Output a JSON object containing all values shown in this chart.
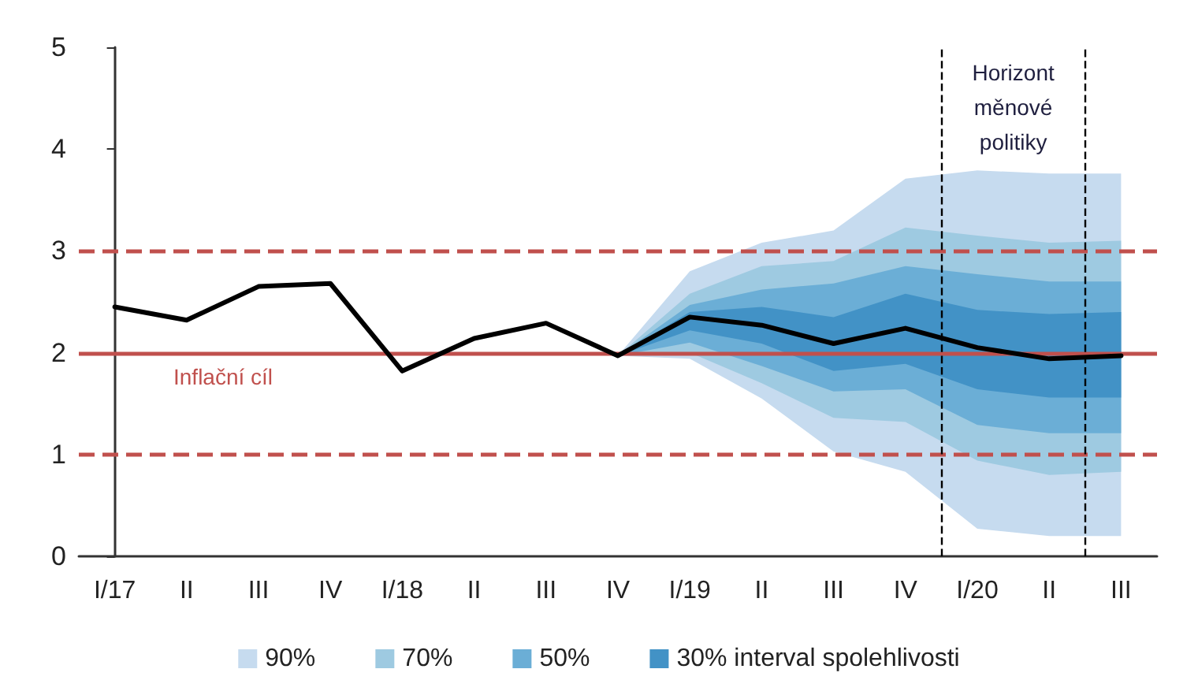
{
  "chart_data": {
    "type": "line",
    "categories": [
      "I/17",
      "II",
      "III",
      "IV",
      "I/18",
      "II",
      "III",
      "IV",
      "I/19",
      "II",
      "III",
      "IV",
      "I/20",
      "II",
      "III"
    ],
    "series": [
      {
        "type": "line",
        "name": "90%",
        "color": "#c6dbef",
        "values": [
          null,
          null,
          null,
          null,
          null,
          null,
          null,
          null,
          null,
          null,
          null,
          null,
          null,
          null,
          null
        ],
        "lower": [
          null,
          null,
          null,
          null,
          null,
          null,
          null,
          1.97,
          1.94,
          1.55,
          1.03,
          0.83,
          0.27,
          0.2,
          0.2
        ],
        "upper": [
          null,
          null,
          null,
          null,
          null,
          null,
          null,
          1.97,
          2.8,
          3.08,
          3.2,
          3.71,
          3.79,
          3.76,
          3.76
        ]
      },
      {
        "type": "line",
        "name": "70%",
        "color": "#9ecae1",
        "values": [
          null,
          null,
          null,
          null,
          null,
          null,
          null,
          null,
          null,
          null,
          null,
          null,
          null,
          null,
          null
        ],
        "lower": [
          null,
          null,
          null,
          null,
          null,
          null,
          null,
          1.97,
          2.0,
          1.7,
          1.36,
          1.32,
          0.94,
          0.8,
          0.83
        ],
        "upper": [
          null,
          null,
          null,
          null,
          null,
          null,
          null,
          1.97,
          2.58,
          2.85,
          2.9,
          3.23,
          3.15,
          3.08,
          3.1
        ]
      },
      {
        "type": "line",
        "name": "50%",
        "color": "#6baed6",
        "values": [
          null,
          null,
          null,
          null,
          null,
          null,
          null,
          null,
          null,
          null,
          null,
          null,
          null,
          null,
          null
        ],
        "lower": [
          null,
          null,
          null,
          null,
          null,
          null,
          null,
          1.97,
          2.1,
          1.87,
          1.62,
          1.64,
          1.29,
          1.21,
          1.21
        ],
        "upper": [
          null,
          null,
          null,
          null,
          null,
          null,
          null,
          1.97,
          2.47,
          2.62,
          2.68,
          2.85,
          2.77,
          2.7,
          2.7
        ]
      },
      {
        "type": "line",
        "name": "30% interval spolehlivosti",
        "color": "#4292c6",
        "values": [
          null,
          null,
          null,
          null,
          null,
          null,
          null,
          null,
          null,
          null,
          null,
          null,
          null,
          null,
          null
        ],
        "lower": [
          null,
          null,
          null,
          null,
          null,
          null,
          null,
          1.97,
          2.22,
          2.09,
          1.82,
          1.89,
          1.64,
          1.56,
          1.56
        ],
        "upper": [
          null,
          null,
          null,
          null,
          null,
          null,
          null,
          1.97,
          2.4,
          2.45,
          2.35,
          2.58,
          2.42,
          2.38,
          2.4
        ]
      },
      {
        "color": "#000000",
        "values": [
          2.45,
          2.32,
          2.65,
          2.68,
          1.82,
          2.14,
          2.29,
          1.97,
          2.35,
          2.27,
          2.09,
          2.24,
          2.05,
          1.94,
          1.97
        ]
      }
    ],
    "ylim": [
      0,
      5
    ],
    "yticks": [
      0,
      1,
      2,
      3,
      4,
      5
    ],
    "ref_lines": [
      {
        "axis": "y",
        "value": 2,
        "label": "Inflační cíl",
        "color": "#c0504d",
        "line_style": "solid"
      },
      {
        "axis": "y",
        "value": 1,
        "color": "#c0504d",
        "line_style": "dashed"
      },
      {
        "axis": "y",
        "value": 3,
        "color": "#c0504d",
        "line_style": "dashed"
      }
    ],
    "annotations": [
      "Horizont\nměnové\npolitiky"
    ],
    "grid": false,
    "legend": "bottom",
    "marker": "none",
    "line_style": "solid"
  }
}
